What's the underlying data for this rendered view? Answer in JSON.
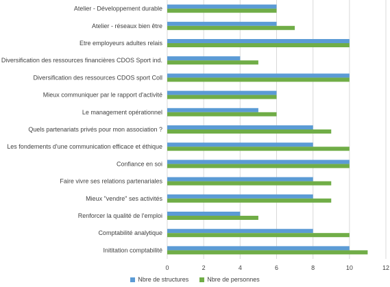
{
  "chart_data": {
    "type": "bar",
    "orientation": "horizontal",
    "categories": [
      "Atelier - Développement durable",
      "Atelier -  réseaux bien être",
      "Etre employeurs adultes relais",
      "Diversification des ressources financières CDOS Sport ind.",
      "Diversification des ressources CDOS sport Coll",
      "Mieux communiquer par le rapport d'activité",
      "Le management opérationnel",
      "Quels partenariats privés pour mon association ?",
      "Les fondements d'une communication efficace et éthique",
      "Confiance en soi",
      "Faire vivre ses relations partenariales",
      "Mieux \"vendre\" ses activités",
      "Renforcer la qualité de l'emploi",
      "Comptabilité analytique",
      "Inititation comptabilité"
    ],
    "series": [
      {
        "name": "Nbre de structures",
        "color": "#5B9BD5",
        "values": [
          6,
          6,
          10,
          4,
          10,
          6,
          5,
          8,
          8,
          10,
          8,
          8,
          4,
          8,
          10
        ]
      },
      {
        "name": "Nbre de personnes",
        "color": "#70AD47",
        "values": [
          6,
          7,
          10,
          5,
          10,
          6,
          6,
          9,
          10,
          10,
          9,
          9,
          5,
          10,
          11
        ]
      }
    ],
    "xlim": [
      0,
      12
    ],
    "xticks": [
      0,
      2,
      4,
      6,
      8,
      10,
      12
    ],
    "grid": true,
    "legend_position": "bottom"
  }
}
